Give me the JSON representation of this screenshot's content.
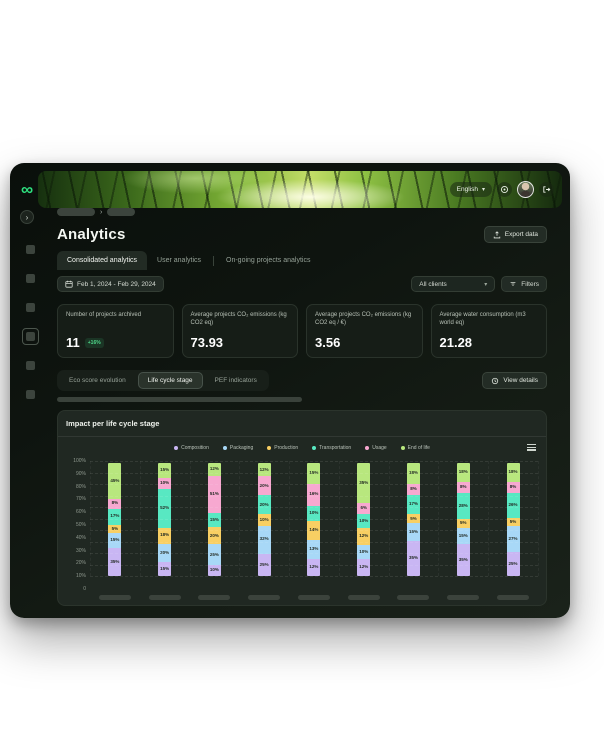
{
  "header": {
    "language_label": "English"
  },
  "page": {
    "title": "Analytics",
    "export_button": "Export data"
  },
  "sidebar": {
    "item_count": 6,
    "active_index": 3
  },
  "tabs": [
    {
      "label": "Consolidated analytics",
      "active": true
    },
    {
      "label": "User analytics",
      "active": false
    },
    {
      "label": "On-going projects analytics",
      "active": false
    }
  ],
  "filters": {
    "date_range": "Feb 1, 2024 - Feb 29, 2024",
    "client_select": "All clients",
    "filters_button": "Filters"
  },
  "stats": [
    {
      "label": "Number of projects archived",
      "value": "11",
      "badge": "+16%"
    },
    {
      "label": "Average projects CO₂ emissions (kg CO2 eq)",
      "value": "73.93",
      "badge": ""
    },
    {
      "label": "Average projects CO₂ emissions (kg CO2 eq / €)",
      "value": "3.56",
      "badge": ""
    },
    {
      "label": "Average water consumption (m3 world eq)",
      "value": "21.28",
      "badge": ""
    }
  ],
  "view_toggle": {
    "options": [
      "Eco score evolution",
      "Life cycle stage",
      "PEF indicators"
    ],
    "selected": "Life cycle stage",
    "view_details_button": "View details"
  },
  "chart_data": {
    "type": "bar",
    "stacked": true,
    "title": "Impact per life cycle stage",
    "legend_position": "top",
    "grid": true,
    "ylim": [
      0,
      100
    ],
    "y_ticks": [
      "100%",
      "90%",
      "80%",
      "70%",
      "60%",
      "50%",
      "40%",
      "30%",
      "20%",
      "10%",
      "0"
    ],
    "categories": [
      "",
      "",
      "",
      "",
      "",
      "",
      "",
      "",
      ""
    ],
    "series": [
      {
        "name": "Composition",
        "color": "#c9b6f3",
        "values": [
          35,
          15,
          10,
          25,
          12,
          12,
          35,
          35,
          25
        ]
      },
      {
        "name": "Packaging",
        "color": "#a8d8f7",
        "values": [
          15,
          20,
          25,
          32,
          13,
          10,
          15,
          15,
          27
        ]
      },
      {
        "name": "Production",
        "color": "#f8cf63",
        "values": [
          5,
          18,
          20,
          10,
          14,
          12,
          5,
          5,
          5
        ]
      },
      {
        "name": "Transportation",
        "color": "#58e8c2",
        "values": [
          17,
          52,
          15,
          20,
          10,
          10,
          17,
          28,
          26
        ]
      },
      {
        "name": "Usage",
        "color": "#f7a8d0",
        "values": [
          8,
          10,
          51,
          20,
          16,
          6,
          8,
          8,
          8
        ]
      },
      {
        "name": "End of life",
        "color": "#b8e77e",
        "values": [
          45,
          15,
          12,
          12,
          15,
          35,
          18,
          18,
          18
        ]
      }
    ]
  }
}
